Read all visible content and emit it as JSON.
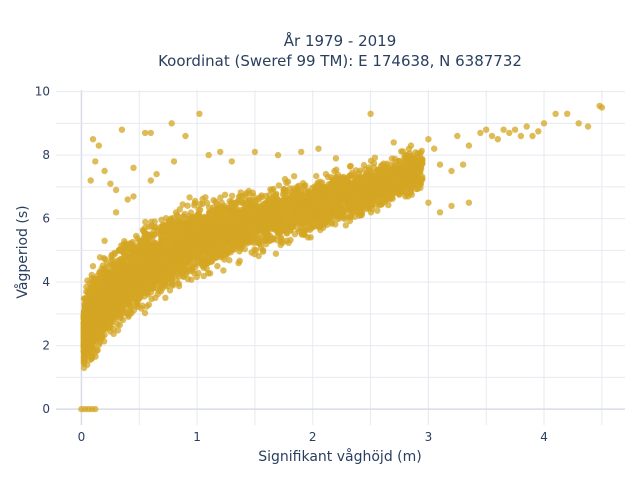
{
  "chart_data": {
    "type": "scatter",
    "title": "År 1979 - 2019",
    "subtitle": "Koordinat (Sweref 99 TM): E 174638, N 6387732",
    "xlabel": "Signifikant våghöjd (m)",
    "ylabel": "Vågperiod (s)",
    "xlim": [
      -0.22,
      4.7
    ],
    "ylim": [
      -0.5,
      10.05
    ],
    "x_ticks": [
      0,
      1,
      2,
      3,
      4
    ],
    "y_ticks": [
      0,
      2,
      4,
      6,
      8,
      10
    ],
    "grid": true,
    "marker_color": "#d4a523",
    "marker_opacity": 0.75,
    "series": [
      {
        "band": {
          "x": [
            0.02,
            0.05,
            0.1,
            0.2,
            0.3,
            0.5,
            0.75,
            1.0,
            1.25,
            1.5,
            1.75,
            2.0,
            2.25,
            2.5,
            2.75,
            2.95
          ],
          "lower": [
            1.1,
            1.05,
            1.2,
            1.7,
            2.1,
            2.8,
            3.4,
            3.9,
            4.3,
            4.6,
            4.9,
            5.2,
            5.6,
            5.9,
            6.3,
            6.6
          ],
          "upper": [
            3.6,
            4.2,
            4.6,
            5.0,
            5.4,
            6.0,
            6.5,
            6.8,
            7.0,
            7.2,
            7.4,
            7.6,
            7.8,
            8.0,
            8.3,
            8.5
          ]
        },
        "points": [
          [
            0.0,
            0.0
          ],
          [
            0.03,
            0.0
          ],
          [
            0.06,
            0.0
          ],
          [
            0.09,
            0.0
          ],
          [
            0.12,
            0.0
          ],
          [
            0.1,
            8.5
          ],
          [
            0.15,
            8.3
          ],
          [
            0.12,
            7.8
          ],
          [
            0.08,
            7.2
          ],
          [
            0.2,
            7.5
          ],
          [
            0.25,
            7.1
          ],
          [
            0.35,
            8.8
          ],
          [
            0.55,
            8.7
          ],
          [
            0.6,
            8.7
          ],
          [
            0.78,
            9.0
          ],
          [
            0.9,
            8.6
          ],
          [
            1.02,
            9.3
          ],
          [
            0.3,
            6.9
          ],
          [
            0.45,
            7.6
          ],
          [
            0.65,
            7.4
          ],
          [
            0.4,
            6.6
          ],
          [
            1.1,
            8.0
          ],
          [
            1.3,
            7.8
          ],
          [
            1.5,
            8.1
          ],
          [
            1.7,
            8.0
          ],
          [
            1.9,
            8.1
          ],
          [
            2.05,
            8.2
          ],
          [
            2.2,
            7.9
          ],
          [
            2.5,
            9.3
          ],
          [
            2.7,
            8.4
          ],
          [
            2.85,
            8.3
          ],
          [
            3.0,
            8.5
          ],
          [
            3.05,
            8.2
          ],
          [
            3.1,
            7.7
          ],
          [
            3.2,
            7.5
          ],
          [
            3.3,
            7.7
          ],
          [
            3.25,
            8.6
          ],
          [
            3.35,
            8.3
          ],
          [
            3.45,
            8.7
          ],
          [
            3.5,
            8.8
          ],
          [
            3.55,
            8.6
          ],
          [
            3.6,
            8.5
          ],
          [
            3.65,
            8.8
          ],
          [
            3.7,
            8.7
          ],
          [
            3.75,
            8.8
          ],
          [
            3.8,
            8.6
          ],
          [
            3.85,
            8.9
          ],
          [
            3.9,
            8.6
          ],
          [
            3.95,
            8.75
          ],
          [
            4.0,
            9.0
          ],
          [
            4.1,
            9.3
          ],
          [
            4.2,
            9.3
          ],
          [
            4.3,
            9.0
          ],
          [
            4.38,
            8.9
          ],
          [
            4.48,
            9.55
          ],
          [
            4.5,
            9.5
          ],
          [
            2.2,
            6.6
          ],
          [
            2.4,
            6.9
          ],
          [
            2.6,
            6.5
          ],
          [
            2.8,
            6.7
          ],
          [
            3.0,
            6.5
          ],
          [
            3.2,
            6.4
          ],
          [
            3.1,
            6.2
          ],
          [
            3.35,
            6.5
          ],
          [
            1.5,
            5.8
          ],
          [
            1.75,
            6.0
          ],
          [
            2.0,
            6.2
          ],
          [
            1.3,
            5.3
          ],
          [
            1.1,
            5.0
          ],
          [
            0.9,
            4.4
          ],
          [
            0.7,
            3.8
          ],
          [
            0.5,
            3.5
          ],
          [
            0.35,
            3.0
          ],
          [
            0.25,
            2.6
          ],
          [
            0.15,
            2.3
          ],
          [
            0.08,
            1.8
          ],
          [
            0.05,
            1.4
          ],
          [
            0.05,
            3.5
          ],
          [
            0.1,
            4.5
          ],
          [
            0.2,
            5.3
          ],
          [
            0.3,
            6.2
          ],
          [
            0.45,
            6.7
          ],
          [
            0.6,
            7.2
          ],
          [
            0.8,
            7.8
          ],
          [
            1.2,
            8.1
          ]
        ]
      }
    ]
  }
}
